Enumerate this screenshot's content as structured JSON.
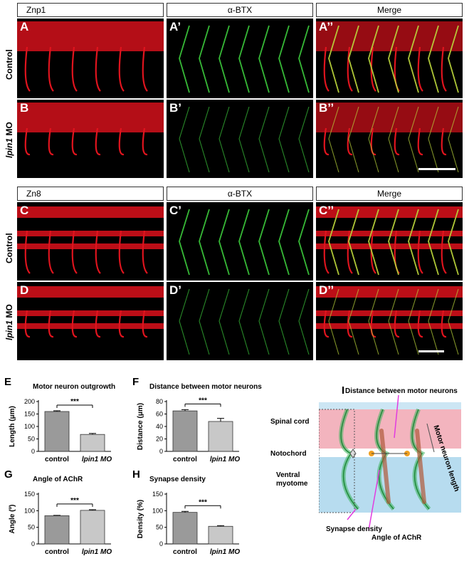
{
  "headers": {
    "row1": [
      "Znp1",
      "α-BTX",
      "Merge"
    ],
    "row2": [
      "Zn8",
      "α-BTX",
      "Merge"
    ]
  },
  "panel_labels": {
    "A": "A",
    "A1": "A’",
    "A2": "A’’",
    "B": "B",
    "B1": "B’",
    "B2": "B’’",
    "C": "C",
    "C1": "C’",
    "C2": "C’’",
    "D": "D",
    "D1": "D’",
    "D2": "D’’"
  },
  "row_labels": {
    "control": "Control",
    "mo_gene": "lpin1",
    "mo_suffix": " MO"
  },
  "charts": [
    {
      "letter": "E",
      "type": "bar",
      "title": "Motor neuron outgrowth",
      "ylabel": "Length  (μm)",
      "ylim": [
        0,
        200
      ],
      "yticks": [
        "0",
        "50",
        "100",
        "150",
        "200"
      ],
      "categories": [
        "control",
        "lpin1 MO"
      ],
      "values": [
        160,
        68
      ],
      "errors": [
        3,
        4
      ],
      "significance": "***"
    },
    {
      "letter": "F",
      "type": "bar",
      "title": "Distance between motor neurons",
      "ylabel": "Distance  (μm)",
      "ylim": [
        0,
        80
      ],
      "yticks": [
        "0",
        "20",
        "40",
        "60",
        "80"
      ],
      "categories": [
        "control",
        "lpin1 MO"
      ],
      "values": [
        65,
        48
      ],
      "errors": [
        2,
        5
      ],
      "significance": "***"
    },
    {
      "letter": "G",
      "type": "bar",
      "title": "Angle of AChR",
      "ylabel": "Angle (º)",
      "ylim": [
        0,
        150
      ],
      "yticks": [
        "0",
        "50",
        "100",
        "150"
      ],
      "categories": [
        "control",
        "lpin1 MO"
      ],
      "values": [
        85,
        101
      ],
      "errors": [
        1,
        2
      ],
      "significance": "***"
    },
    {
      "letter": "H",
      "type": "bar",
      "title": "Synapse density",
      "ylabel": "Density (%)",
      "ylim": [
        0,
        150
      ],
      "yticks": [
        "0",
        "50",
        "100",
        "150"
      ],
      "categories": [
        "control",
        "lpin1 MO"
      ],
      "values": [
        95,
        53
      ],
      "errors": [
        3,
        2
      ],
      "significance": "***"
    }
  ],
  "diagram": {
    "letter": "I",
    "labels": {
      "distance": "Distance between motor neurons",
      "spinal": "Spinal cord",
      "notochord": "Notochord",
      "ventral1": "Ventral",
      "ventral2": "myotome",
      "synapse": "Synapse density",
      "angle": "Angle of AChR",
      "length": "Motor neuron length"
    },
    "colors": {
      "spinal": "#f1a7b3",
      "myotome": "#b7dcef",
      "neuron": "#3bb25a",
      "arrow": "#e23ce0",
      "synapse": "#f0a020"
    }
  }
}
